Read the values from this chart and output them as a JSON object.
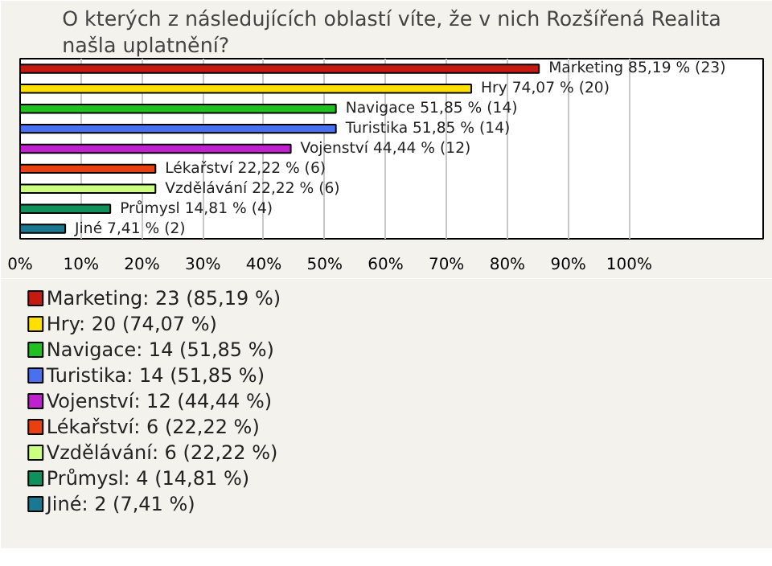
{
  "chart_data": {
    "type": "bar",
    "orientation": "horizontal",
    "title": "O kterých z následujících oblastí víte, že v nich Rozšířená Realita našla uplatnění?",
    "categories": [
      null,
      null,
      null,
      null,
      null,
      null,
      null,
      null,
      null
    ],
    "series": [
      {
        "name": "Marketing: 23 (85,19 %)",
        "color": "#c41a10",
        "values": [
          85.19,
          null,
          null,
          null,
          null,
          null,
          null,
          null,
          null
        ],
        "value_labels": [
          "Marketing 85,19 % (23)",
          null,
          null,
          null,
          null,
          null,
          null,
          null,
          null
        ]
      },
      {
        "name": "Hry: 20 (74,07 %)",
        "color": "#ffe000",
        "values": [
          null,
          74.07,
          null,
          null,
          null,
          null,
          null,
          null,
          null
        ],
        "value_labels": [
          null,
          "Hry 74,07 % (20)",
          null,
          null,
          null,
          null,
          null,
          null,
          null
        ]
      },
      {
        "name": "Navigace: 14 (51,85 %)",
        "color": "#1fc01f",
        "values": [
          null,
          null,
          51.85,
          null,
          null,
          null,
          null,
          null,
          null
        ],
        "value_labels": [
          null,
          null,
          "Navigace 51,85 % (14)",
          null,
          null,
          null,
          null,
          null,
          null
        ]
      },
      {
        "name": "Turistika: 14 (51,85 %)",
        "color": "#4a70f0",
        "values": [
          null,
          null,
          null,
          51.85,
          null,
          null,
          null,
          null,
          null
        ],
        "value_labels": [
          null,
          null,
          null,
          "Turistika 51,85 % (14)",
          null,
          null,
          null,
          null,
          null
        ]
      },
      {
        "name": "Vojenství: 12 (44,44 %)",
        "color": "#c020d0",
        "values": [
          null,
          null,
          null,
          null,
          44.44,
          null,
          null,
          null,
          null
        ],
        "value_labels": [
          null,
          null,
          null,
          null,
          "Vojenství 44,44 % (12)",
          null,
          null,
          null,
          null
        ]
      },
      {
        "name": "Lékařství: 6 (22,22 %)",
        "color": "#e84010",
        "values": [
          null,
          null,
          null,
          null,
          null,
          22.22,
          null,
          null,
          null
        ],
        "value_labels": [
          null,
          null,
          null,
          null,
          null,
          "Lékařství 22,22 % (6)",
          null,
          null,
          null
        ]
      },
      {
        "name": "Vzdělávání: 6 (22,22 %)",
        "color": "#ccff80",
        "values": [
          null,
          null,
          null,
          null,
          null,
          null,
          22.22,
          null,
          null
        ],
        "value_labels": [
          null,
          null,
          null,
          null,
          null,
          null,
          "Vzdělávání 22,22 % (6)",
          null,
          null
        ]
      },
      {
        "name": "Průmysl: 4 (14,81 %)",
        "color": "#10905a",
        "values": [
          null,
          null,
          null,
          null,
          null,
          null,
          null,
          14.81,
          null
        ],
        "value_labels": [
          null,
          null,
          null,
          null,
          null,
          null,
          null,
          "Průmysl 14,81 % (4)",
          null
        ]
      },
      {
        "name": "Jiné: 2 (7,41 %)",
        "color": "#1a7890",
        "values": [
          null,
          null,
          null,
          null,
          null,
          null,
          null,
          null,
          7.41
        ],
        "value_labels": [
          null,
          null,
          null,
          null,
          null,
          null,
          null,
          null,
          "Jiné 7,41 % (2)"
        ]
      }
    ],
    "xlim": [
      0,
      122
    ],
    "xticks": [
      {
        "value": 0,
        "label": "0%"
      },
      {
        "value": 10,
        "label": "10%"
      },
      {
        "value": 20,
        "label": "20%"
      },
      {
        "value": 30,
        "label": "30%"
      },
      {
        "value": 40,
        "label": "40%"
      },
      {
        "value": 50,
        "label": "50%"
      },
      {
        "value": 60,
        "label": "60%"
      },
      {
        "value": 70,
        "label": "70%"
      },
      {
        "value": 80,
        "label": "80%"
      },
      {
        "value": 90,
        "label": "90%"
      },
      {
        "value": 100,
        "label": "100%"
      }
    ],
    "grid": "x",
    "legend": "bottom",
    "tick_labels": "x"
  }
}
